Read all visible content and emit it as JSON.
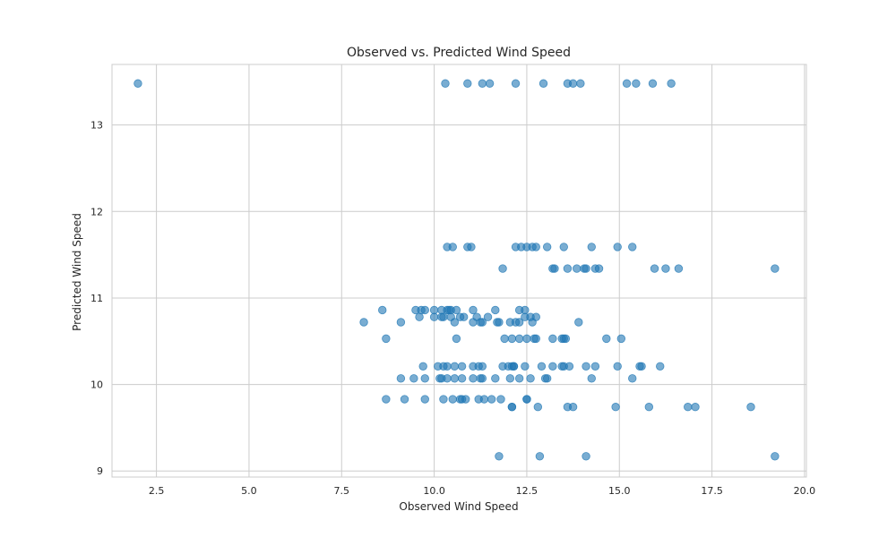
{
  "chart_data": {
    "type": "scatter",
    "title": "Observed vs. Predicted Wind Speed",
    "xlabel": "Observed Wind Speed",
    "ylabel": "Predicted Wind Speed",
    "xlim": [
      1.3,
      20.05
    ],
    "ylim": [
      8.93,
      13.7
    ],
    "xticks": [
      2.5,
      5.0,
      7.5,
      10.0,
      12.5,
      15.0,
      17.5,
      20.0
    ],
    "xtick_labels": [
      "2.5",
      "5.0",
      "7.5",
      "10.0",
      "12.5",
      "15.0",
      "17.5",
      "20.0"
    ],
    "yticks": [
      9,
      10,
      11,
      12,
      13
    ],
    "ytick_labels": [
      "9",
      "10",
      "11",
      "12",
      "13"
    ],
    "grid": true,
    "colors": {
      "point": "#1f77b4",
      "point_alpha": 0.6,
      "grid": "#cccccc",
      "text": "#262626",
      "spine": "#cccccc"
    },
    "points": [
      [
        2.0,
        13.48
      ],
      [
        10.3,
        13.48
      ],
      [
        10.9,
        13.48
      ],
      [
        11.3,
        13.48
      ],
      [
        11.5,
        13.48
      ],
      [
        12.2,
        13.48
      ],
      [
        12.95,
        13.48
      ],
      [
        13.6,
        13.48
      ],
      [
        13.75,
        13.48
      ],
      [
        13.95,
        13.48
      ],
      [
        15.2,
        13.48
      ],
      [
        15.45,
        13.48
      ],
      [
        15.9,
        13.48
      ],
      [
        16.4,
        13.48
      ],
      [
        10.35,
        11.59
      ],
      [
        10.5,
        11.59
      ],
      [
        10.9,
        11.59
      ],
      [
        11.0,
        11.59
      ],
      [
        12.2,
        11.59
      ],
      [
        12.35,
        11.59
      ],
      [
        12.5,
        11.59
      ],
      [
        12.65,
        11.59
      ],
      [
        12.75,
        11.59
      ],
      [
        13.05,
        11.59
      ],
      [
        13.5,
        11.59
      ],
      [
        14.25,
        11.59
      ],
      [
        14.95,
        11.59
      ],
      [
        15.35,
        11.59
      ],
      [
        11.85,
        11.34
      ],
      [
        13.2,
        11.34
      ],
      [
        13.25,
        11.34
      ],
      [
        13.6,
        11.34
      ],
      [
        13.85,
        11.34
      ],
      [
        14.05,
        11.34
      ],
      [
        14.1,
        11.34
      ],
      [
        14.35,
        11.34
      ],
      [
        14.45,
        11.34
      ],
      [
        15.95,
        11.34
      ],
      [
        16.25,
        11.34
      ],
      [
        16.6,
        11.34
      ],
      [
        19.2,
        11.34
      ],
      [
        9.5,
        10.86
      ],
      [
        9.65,
        10.86
      ],
      [
        10.0,
        10.86
      ],
      [
        10.2,
        10.86
      ],
      [
        10.35,
        10.86
      ],
      [
        10.45,
        10.86
      ],
      [
        10.6,
        10.86
      ],
      [
        11.05,
        10.86
      ],
      [
        11.65,
        10.86
      ],
      [
        12.3,
        10.86
      ],
      [
        12.45,
        10.86
      ],
      [
        8.6,
        10.86
      ],
      [
        9.75,
        10.86
      ],
      [
        10.4,
        10.86
      ],
      [
        8.1,
        10.72
      ],
      [
        9.1,
        10.72
      ],
      [
        9.6,
        10.78
      ],
      [
        10.0,
        10.78
      ],
      [
        10.25,
        10.78
      ],
      [
        10.45,
        10.78
      ],
      [
        10.7,
        10.78
      ],
      [
        11.15,
        10.78
      ],
      [
        11.45,
        10.78
      ],
      [
        12.45,
        10.78
      ],
      [
        12.75,
        10.78
      ],
      [
        10.2,
        10.78
      ],
      [
        10.8,
        10.78
      ],
      [
        12.6,
        10.78
      ],
      [
        10.55,
        10.72
      ],
      [
        11.05,
        10.72
      ],
      [
        11.3,
        10.72
      ],
      [
        11.7,
        10.72
      ],
      [
        11.75,
        10.72
      ],
      [
        12.05,
        10.72
      ],
      [
        12.2,
        10.72
      ],
      [
        12.3,
        10.72
      ],
      [
        12.65,
        10.72
      ],
      [
        13.9,
        10.72
      ],
      [
        11.25,
        10.72
      ],
      [
        8.7,
        10.53
      ],
      [
        10.6,
        10.53
      ],
      [
        11.9,
        10.53
      ],
      [
        12.1,
        10.53
      ],
      [
        12.3,
        10.53
      ],
      [
        12.5,
        10.53
      ],
      [
        12.7,
        10.53
      ],
      [
        12.75,
        10.53
      ],
      [
        13.2,
        10.53
      ],
      [
        13.45,
        10.53
      ],
      [
        13.5,
        10.53
      ],
      [
        14.65,
        10.53
      ],
      [
        15.05,
        10.53
      ],
      [
        13.55,
        10.53
      ],
      [
        9.7,
        10.21
      ],
      [
        10.1,
        10.21
      ],
      [
        10.25,
        10.21
      ],
      [
        10.35,
        10.21
      ],
      [
        10.55,
        10.21
      ],
      [
        10.75,
        10.21
      ],
      [
        11.05,
        10.21
      ],
      [
        11.2,
        10.21
      ],
      [
        11.3,
        10.21
      ],
      [
        11.85,
        10.21
      ],
      [
        12.0,
        10.21
      ],
      [
        12.1,
        10.21
      ],
      [
        12.15,
        10.21
      ],
      [
        12.45,
        10.21
      ],
      [
        12.9,
        10.21
      ],
      [
        13.2,
        10.21
      ],
      [
        13.45,
        10.21
      ],
      [
        13.5,
        10.21
      ],
      [
        13.65,
        10.21
      ],
      [
        14.1,
        10.21
      ],
      [
        14.35,
        10.21
      ],
      [
        14.95,
        10.21
      ],
      [
        15.55,
        10.21
      ],
      [
        15.6,
        10.21
      ],
      [
        16.1,
        10.21
      ],
      [
        12.15,
        10.21
      ],
      [
        9.1,
        10.07
      ],
      [
        9.45,
        10.07
      ],
      [
        9.75,
        10.07
      ],
      [
        10.15,
        10.07
      ],
      [
        10.2,
        10.07
      ],
      [
        10.35,
        10.07
      ],
      [
        10.55,
        10.07
      ],
      [
        10.75,
        10.07
      ],
      [
        11.05,
        10.07
      ],
      [
        11.25,
        10.07
      ],
      [
        11.3,
        10.07
      ],
      [
        11.65,
        10.07
      ],
      [
        12.05,
        10.07
      ],
      [
        12.3,
        10.07
      ],
      [
        12.6,
        10.07
      ],
      [
        13.0,
        10.07
      ],
      [
        13.05,
        10.07
      ],
      [
        14.25,
        10.07
      ],
      [
        15.35,
        10.07
      ],
      [
        8.7,
        9.83
      ],
      [
        9.2,
        9.83
      ],
      [
        9.75,
        9.83
      ],
      [
        10.25,
        9.83
      ],
      [
        10.5,
        9.83
      ],
      [
        10.7,
        9.83
      ],
      [
        10.75,
        9.83
      ],
      [
        10.85,
        9.83
      ],
      [
        11.2,
        9.83
      ],
      [
        11.35,
        9.83
      ],
      [
        11.55,
        9.83
      ],
      [
        11.8,
        9.83
      ],
      [
        12.5,
        9.83
      ],
      [
        12.5,
        9.83
      ],
      [
        12.1,
        9.74
      ],
      [
        12.1,
        9.74
      ],
      [
        12.8,
        9.74
      ],
      [
        13.6,
        9.74
      ],
      [
        13.75,
        9.74
      ],
      [
        14.9,
        9.74
      ],
      [
        15.8,
        9.74
      ],
      [
        16.85,
        9.74
      ],
      [
        17.05,
        9.74
      ],
      [
        18.55,
        9.74
      ],
      [
        11.75,
        9.17
      ],
      [
        12.85,
        9.17
      ],
      [
        14.1,
        9.17
      ],
      [
        19.2,
        9.17
      ]
    ]
  }
}
